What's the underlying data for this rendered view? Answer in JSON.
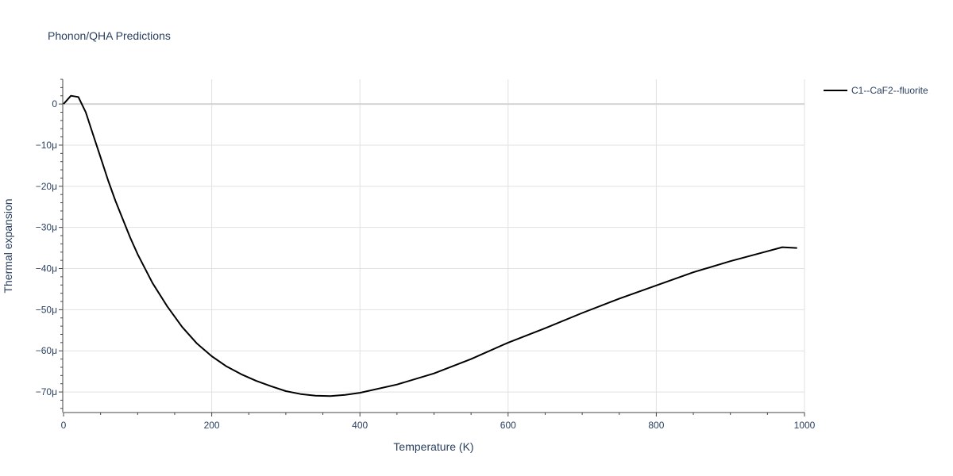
{
  "chart_data": {
    "type": "line",
    "title": "Phonon/QHA Predictions",
    "xlabel": "Temperature (K)",
    "ylabel": "Thermal expansion",
    "xlim": [
      0,
      1000
    ],
    "ylim": [
      -7.5e-05,
      6e-06
    ],
    "x_ticks": [
      0,
      200,
      400,
      600,
      800,
      1000
    ],
    "x_tick_labels": [
      "0",
      "200",
      "400",
      "600",
      "800",
      "1000"
    ],
    "y_ticks": [
      0,
      -1e-05,
      -2e-05,
      -3e-05,
      -4e-05,
      -5e-05,
      -6e-05,
      -7e-05
    ],
    "y_tick_labels": [
      "0",
      "−10μ",
      "−20μ",
      "−30μ",
      "−40μ",
      "−50μ",
      "−60μ",
      "−70μ"
    ],
    "grid": true,
    "legend_position": "top-right",
    "series": [
      {
        "name": "C1--CaF2--fluorite",
        "color": "#000000",
        "x": [
          0,
          10,
          20,
          30,
          40,
          50,
          60,
          70,
          80,
          90,
          100,
          120,
          140,
          160,
          180,
          200,
          220,
          240,
          260,
          280,
          300,
          320,
          340,
          360,
          380,
          400,
          450,
          500,
          550,
          600,
          650,
          700,
          750,
          800,
          850,
          900,
          950,
          970,
          990
        ],
        "y": [
          0,
          2e-06,
          1.7e-06,
          -2e-06,
          -7.5e-06,
          -1.3e-05,
          -1.85e-05,
          -2.35e-05,
          -2.8e-05,
          -3.25e-05,
          -3.65e-05,
          -4.35e-05,
          -4.92e-05,
          -5.42e-05,
          -5.82e-05,
          -6.13e-05,
          -6.38e-05,
          -6.57e-05,
          -6.73e-05,
          -6.86e-05,
          -6.98e-05,
          -7.05e-05,
          -7.09e-05,
          -7.1e-05,
          -7.07e-05,
          -7.02e-05,
          -6.82e-05,
          -6.55e-05,
          -6.2e-05,
          -5.8e-05,
          -5.45e-05,
          -5.08e-05,
          -4.73e-05,
          -4.41e-05,
          -4.09e-05,
          -3.82e-05,
          -3.58e-05,
          -3.48e-05,
          -3.5e-05
        ]
      }
    ]
  }
}
